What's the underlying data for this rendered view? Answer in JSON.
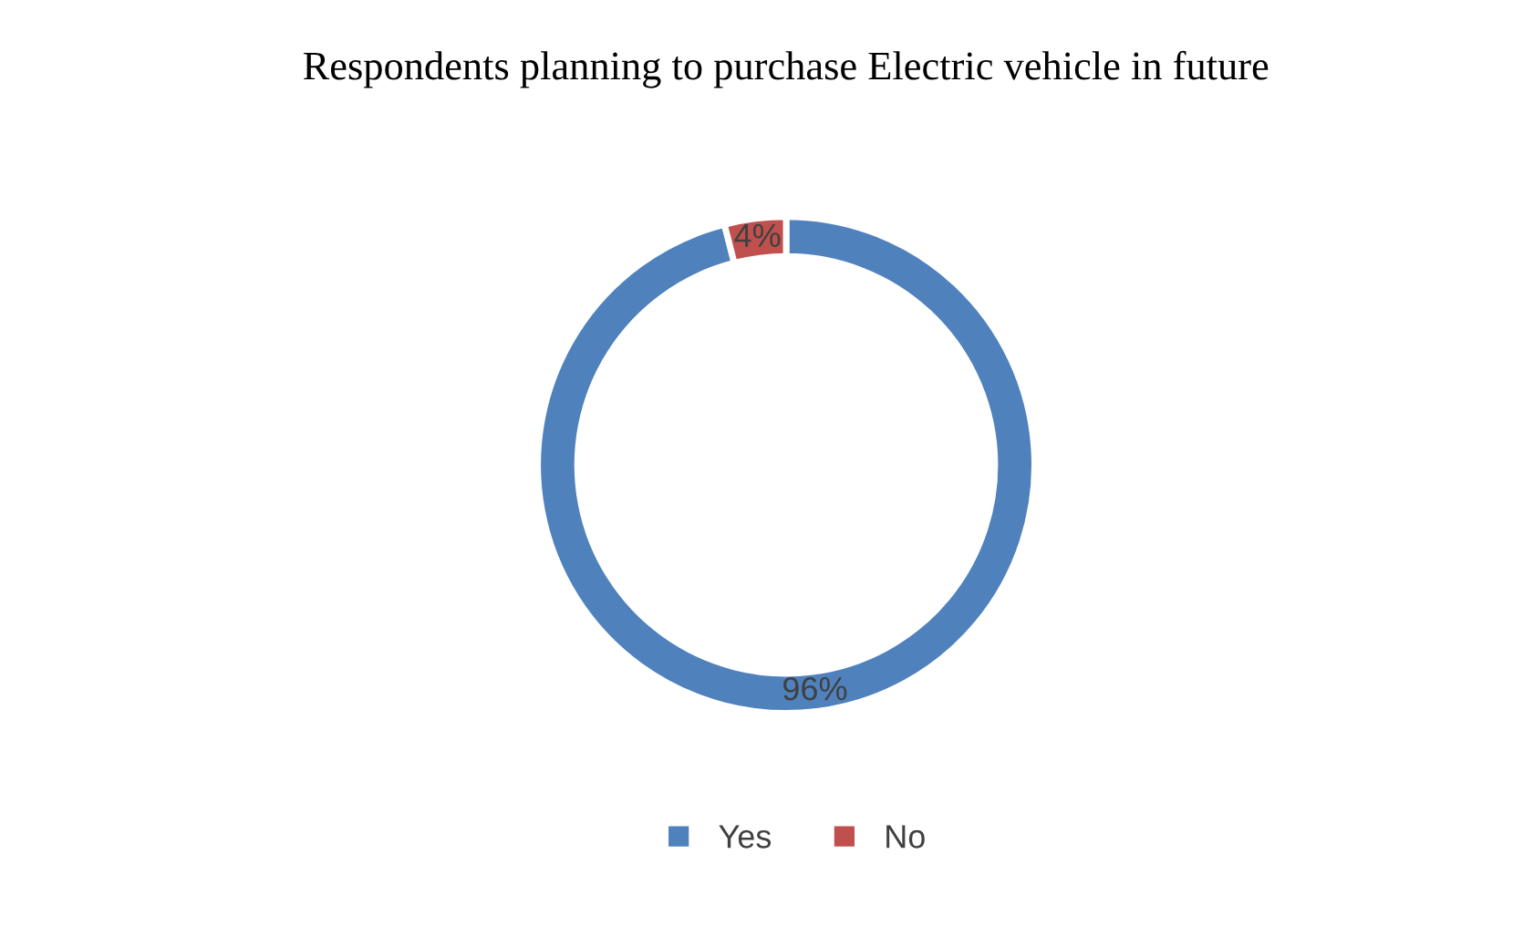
{
  "chart_data": {
    "type": "donut",
    "title": "Respondents planning to purchase Electric vehicle in future",
    "categories": [
      "Yes",
      "No"
    ],
    "values": [
      96,
      4
    ],
    "value_labels": [
      "96%",
      "4%"
    ],
    "colors": [
      "#4f81bd",
      "#c0504d"
    ],
    "legend": "bottom"
  }
}
